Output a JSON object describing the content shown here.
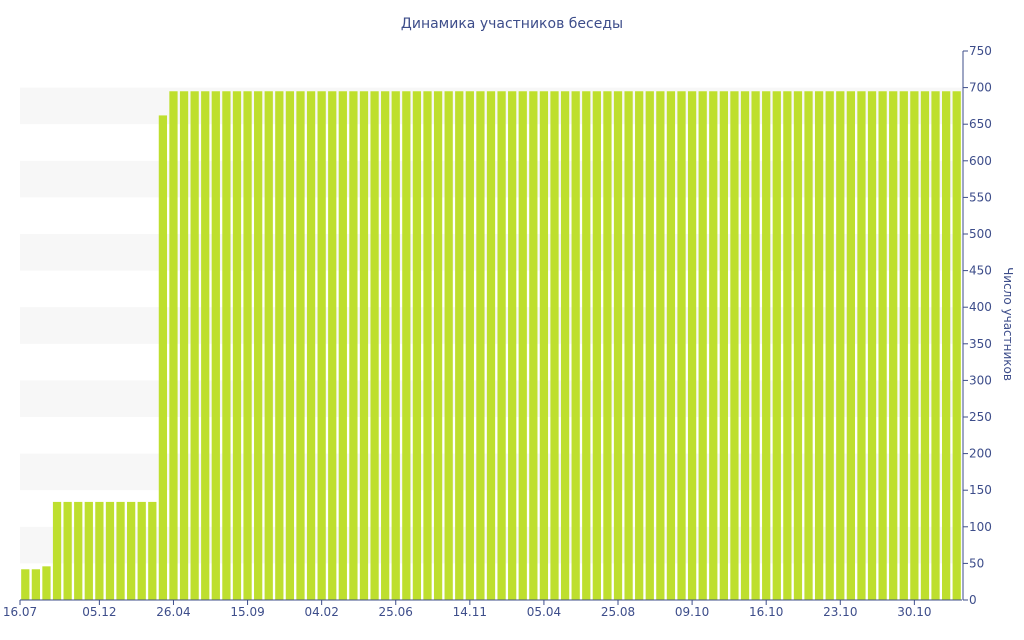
{
  "chart_data": {
    "type": "bar",
    "title": "Динамика участников беседы",
    "xlabel": "",
    "ylabel": "Число участников",
    "ylim": [
      0,
      750
    ],
    "y_axis_side": "right",
    "y_ticks": [
      "0",
      "50",
      "100",
      "150",
      "200",
      "250",
      "300",
      "350",
      "400",
      "450",
      "500",
      "550",
      "600",
      "650",
      "700",
      "750"
    ],
    "x_tick_labels": [
      "16.07",
      "05.12",
      "26.04",
      "15.09",
      "04.02",
      "25.06",
      "14.11",
      "05.04",
      "25.08",
      "09.10",
      "16.10",
      "23.10",
      "30.10"
    ],
    "x_tick_bar_index": [
      0,
      7,
      14,
      21,
      28,
      35,
      42,
      49,
      56,
      63,
      70,
      77,
      84
    ],
    "bar_count": 89,
    "values": [
      42,
      42,
      46,
      134,
      134,
      134,
      134,
      134,
      134,
      134,
      134,
      134,
      134,
      662,
      695,
      695,
      695,
      695,
      695,
      695,
      695,
      695,
      695,
      695,
      695,
      695,
      695,
      695,
      695,
      695,
      695,
      695,
      695,
      695,
      695,
      695,
      695,
      695,
      695,
      695,
      695,
      695,
      695,
      695,
      695,
      695,
      695,
      695,
      695,
      695,
      695,
      695,
      695,
      695,
      695,
      695,
      695,
      695,
      695,
      695,
      695,
      695,
      695,
      695,
      695,
      695,
      695,
      695,
      695,
      695,
      695,
      695,
      695,
      695,
      695,
      695,
      695,
      695,
      695,
      695,
      695,
      695,
      695,
      695,
      695,
      695,
      695,
      695,
      695
    ],
    "bar_color": "#bedf2e",
    "band_color": "#f7f7f7",
    "text_color": "#3d4d8a",
    "grid": false,
    "alternating_bands": true
  }
}
